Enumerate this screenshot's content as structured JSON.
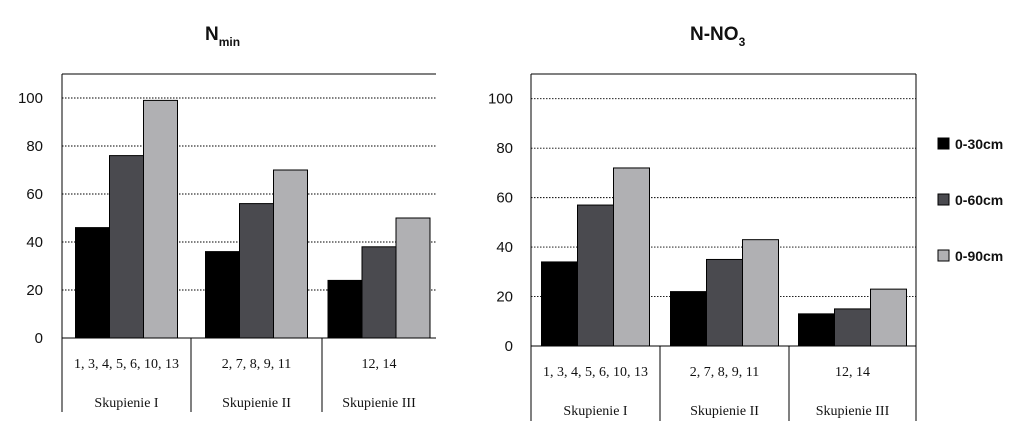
{
  "chart_data": [
    {
      "type": "bar",
      "title": "N",
      "title_subscript": "min",
      "categories": [
        "1, 3, 4, 5, 6, 10, 13",
        "2, 7, 8, 9, 11",
        "12, 14"
      ],
      "groups": [
        "Skupienie I",
        "Skupienie II",
        "Skupienie III"
      ],
      "series": [
        {
          "name": "0-30cm",
          "values": [
            46,
            36,
            24
          ]
        },
        {
          "name": "0-60cm",
          "values": [
            76,
            56,
            38
          ]
        },
        {
          "name": "0-90cm",
          "values": [
            99,
            70,
            50
          ]
        }
      ],
      "ylim": [
        0,
        110
      ],
      "yticks": [
        0,
        20,
        40,
        60,
        80,
        100
      ],
      "grid": true
    },
    {
      "type": "bar",
      "title": "N-NO",
      "title_subscript": "3",
      "categories": [
        "1, 3, 4, 5, 6, 10, 13",
        "2, 7, 8, 9, 11",
        "12, 14"
      ],
      "groups": [
        "Skupienie I",
        "Skupienie II",
        "Skupienie III"
      ],
      "series": [
        {
          "name": "0-30cm",
          "values": [
            34,
            22,
            13
          ]
        },
        {
          "name": "0-60cm",
          "values": [
            57,
            35,
            15
          ]
        },
        {
          "name": "0-90cm",
          "values": [
            72,
            43,
            23
          ]
        }
      ],
      "ylim": [
        0,
        110
      ],
      "yticks": [
        0,
        20,
        40,
        60,
        80,
        100
      ],
      "grid": true
    }
  ],
  "legend": {
    "placement": "right",
    "items": [
      {
        "label": "0-30cm",
        "color": "#000000"
      },
      {
        "label": "0-60cm",
        "color": "#4a4a4f"
      },
      {
        "label": "0-90cm",
        "color": "#b0b0b3"
      }
    ]
  }
}
